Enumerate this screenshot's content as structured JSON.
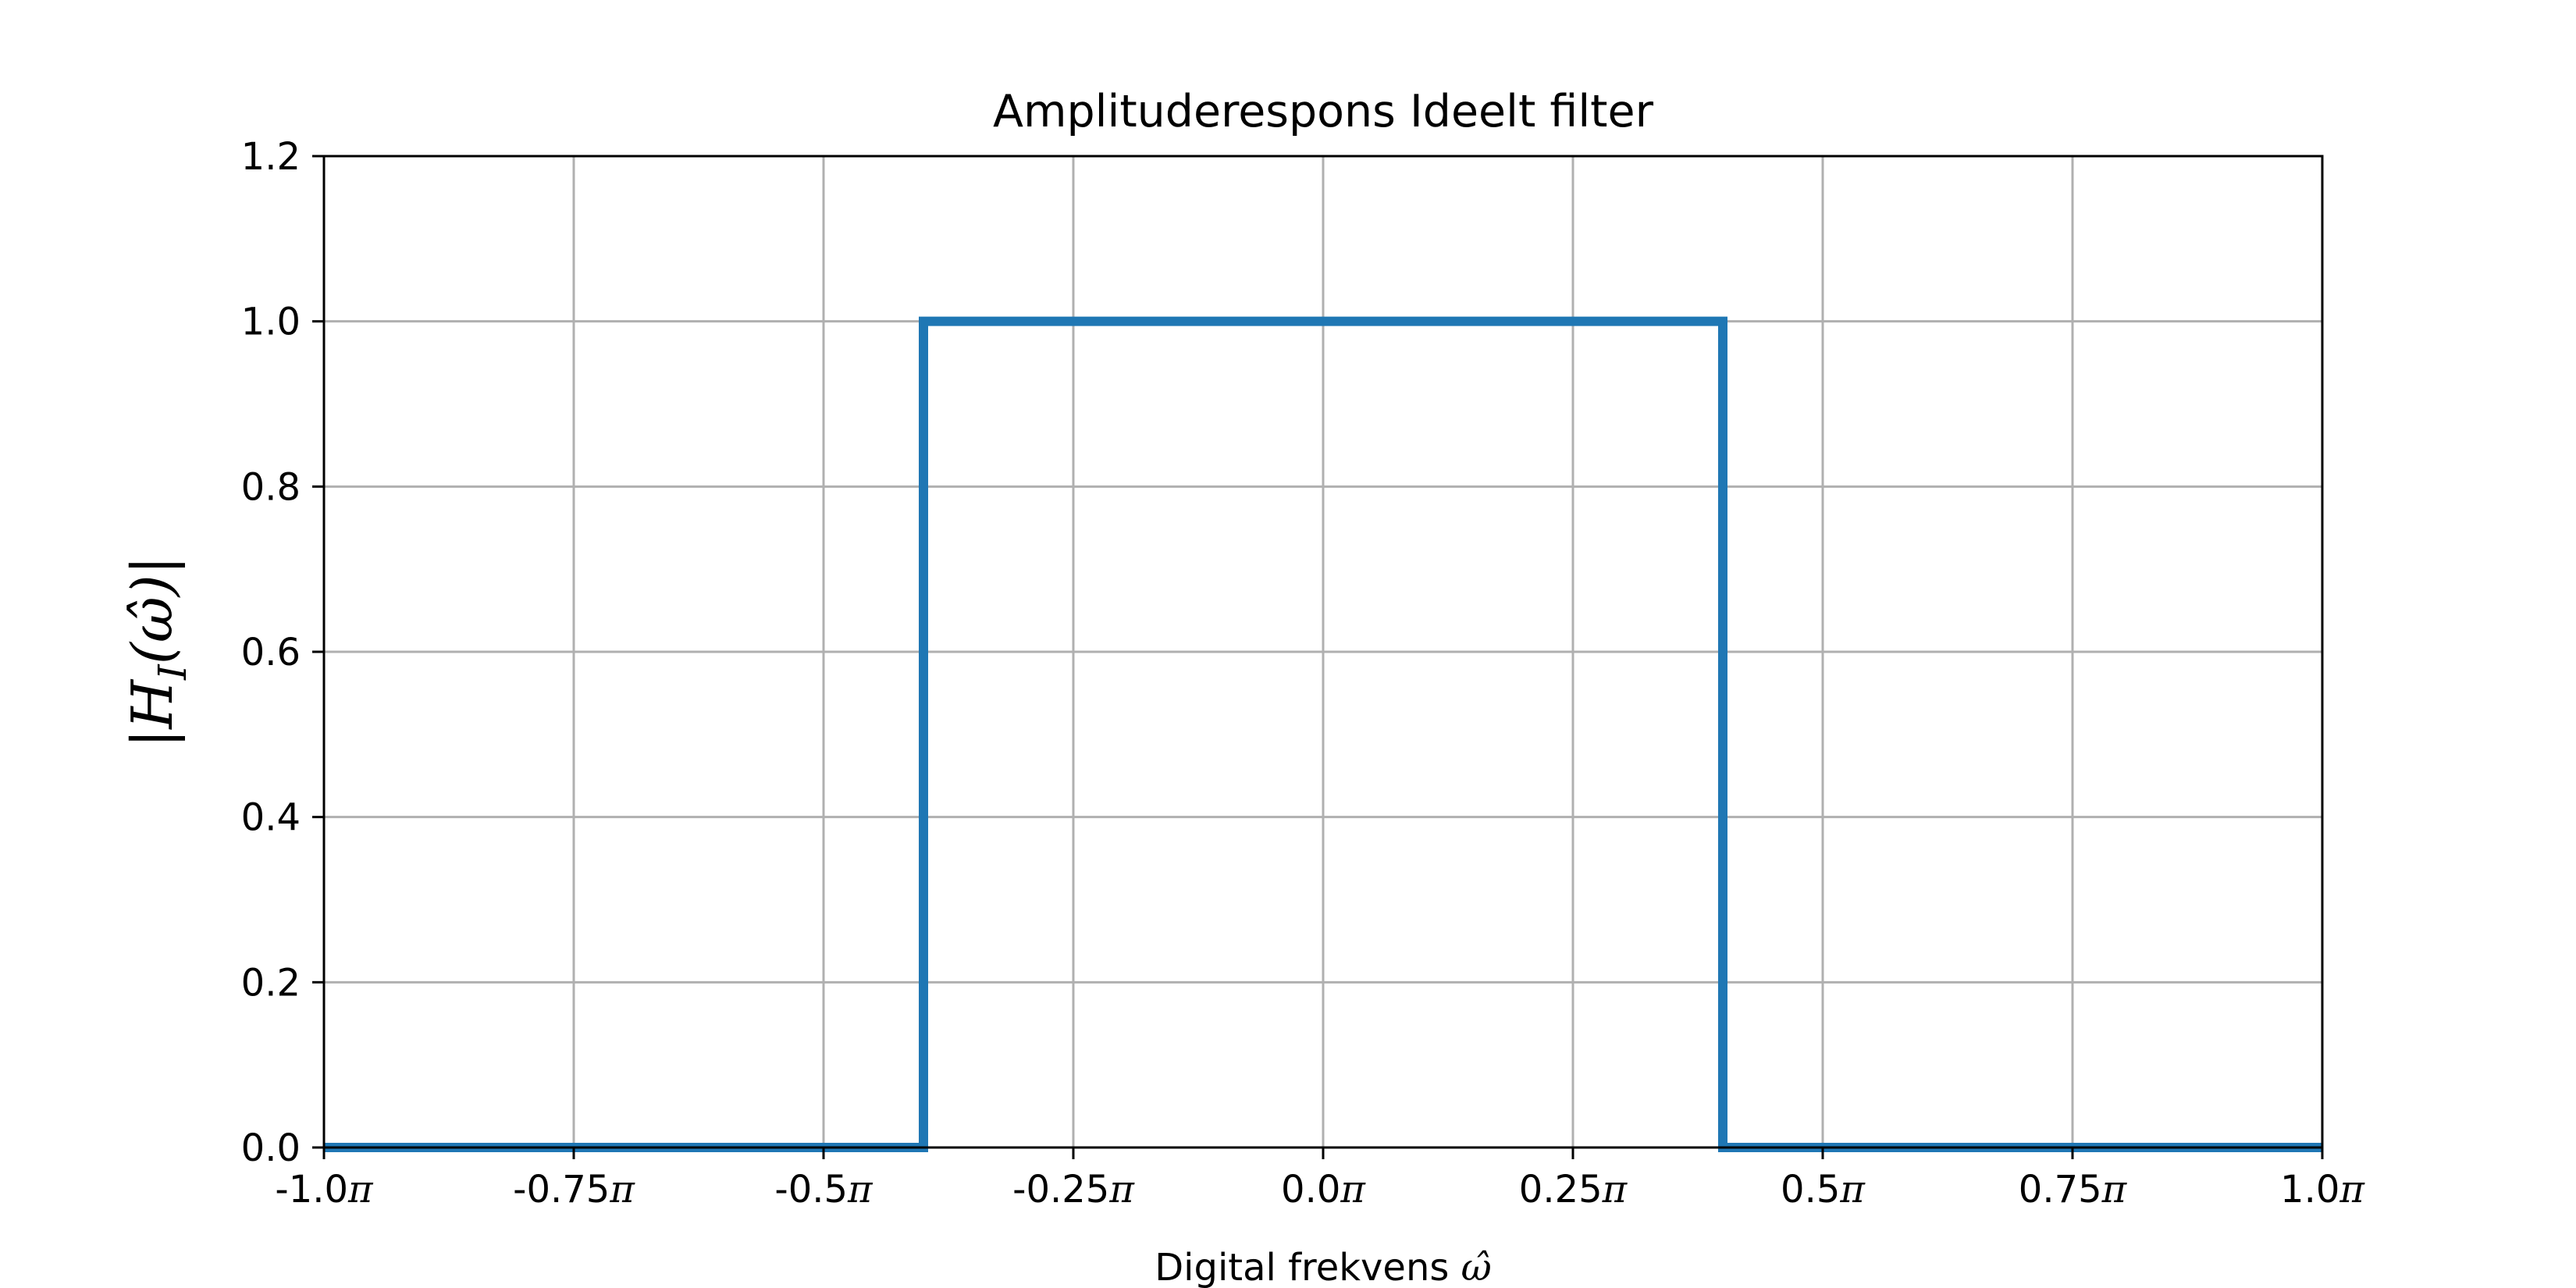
{
  "chart_data": {
    "type": "line",
    "title": "Amplituderespons Ideelt filter",
    "xlabel": "Digital frekvens ω̂",
    "ylabel": "|H_I(ω̂)|",
    "xlim": [
      -1.0,
      1.0
    ],
    "ylim": [
      0.0,
      1.2
    ],
    "x_unit": "π",
    "grid": true,
    "x_ticks": [
      {
        "value": -1.0,
        "label": "-1.0"
      },
      {
        "value": -0.75,
        "label": "-0.75"
      },
      {
        "value": -0.5,
        "label": "-0.5"
      },
      {
        "value": -0.25,
        "label": "-0.25"
      },
      {
        "value": 0.0,
        "label": "0.0"
      },
      {
        "value": 0.25,
        "label": "0.25"
      },
      {
        "value": 0.5,
        "label": "0.5"
      },
      {
        "value": 0.75,
        "label": "0.75"
      },
      {
        "value": 1.0,
        "label": "1.0"
      }
    ],
    "y_ticks": [
      {
        "value": 0.0,
        "label": "0.0"
      },
      {
        "value": 0.2,
        "label": "0.2"
      },
      {
        "value": 0.4,
        "label": "0.4"
      },
      {
        "value": 0.6,
        "label": "0.6"
      },
      {
        "value": 0.8,
        "label": "0.8"
      },
      {
        "value": 1.0,
        "label": "1.0"
      },
      {
        "value": 1.2,
        "label": "1.2"
      }
    ],
    "series": [
      {
        "color": "#1f77b4",
        "x": [
          -1.0,
          -0.4,
          -0.4,
          0.4,
          0.4,
          1.0
        ],
        "y": [
          0.0,
          0.0,
          1.0,
          1.0,
          0.0,
          0.0
        ]
      }
    ]
  }
}
